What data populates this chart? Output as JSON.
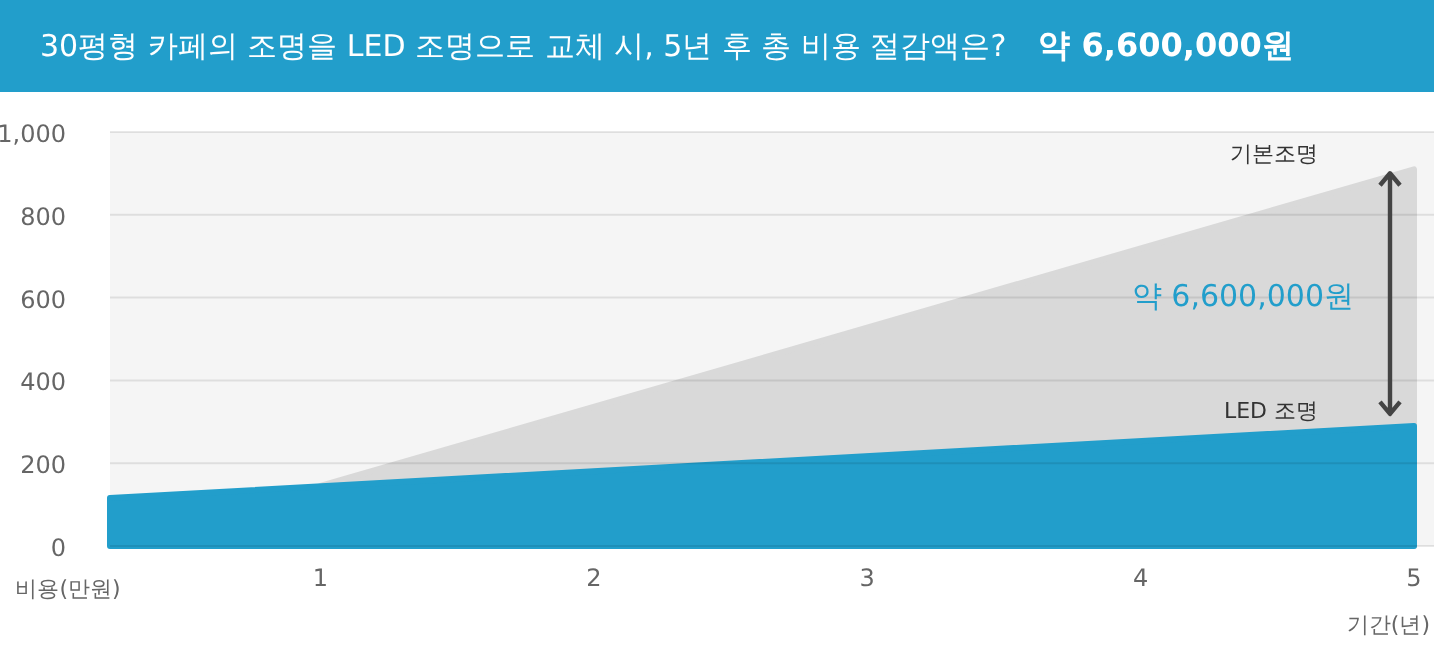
{
  "chart_data": {
    "type": "area",
    "title": "30평형 카페의 조명을 LED 조명으로 교체 시, 5년 후 총 비용 절감액은?",
    "subtitle": "약 6,600,000원",
    "xlabel": "기간(년)",
    "ylabel": "비용(만원)",
    "series": [
      {
        "name": "기본조명",
        "color": "#d9d9d9",
        "x": [
          1,
          5
        ],
        "values": [
          145,
          910
        ]
      },
      {
        "name": "LED 조명",
        "color": "#229ecb",
        "x": [
          0.23,
          5
        ],
        "values": [
          116,
          290
        ]
      }
    ],
    "xlim": [
      0.23,
      5
    ],
    "xticks": [
      1,
      2,
      3,
      4,
      5
    ],
    "ylim": [
      0,
      1000
    ],
    "yticks": [
      0,
      200,
      400,
      600,
      800,
      {
        "value": 1000,
        "label": "1,000"
      }
    ],
    "grid": "y",
    "annotations": [
      "약 6,600,000원"
    ]
  }
}
